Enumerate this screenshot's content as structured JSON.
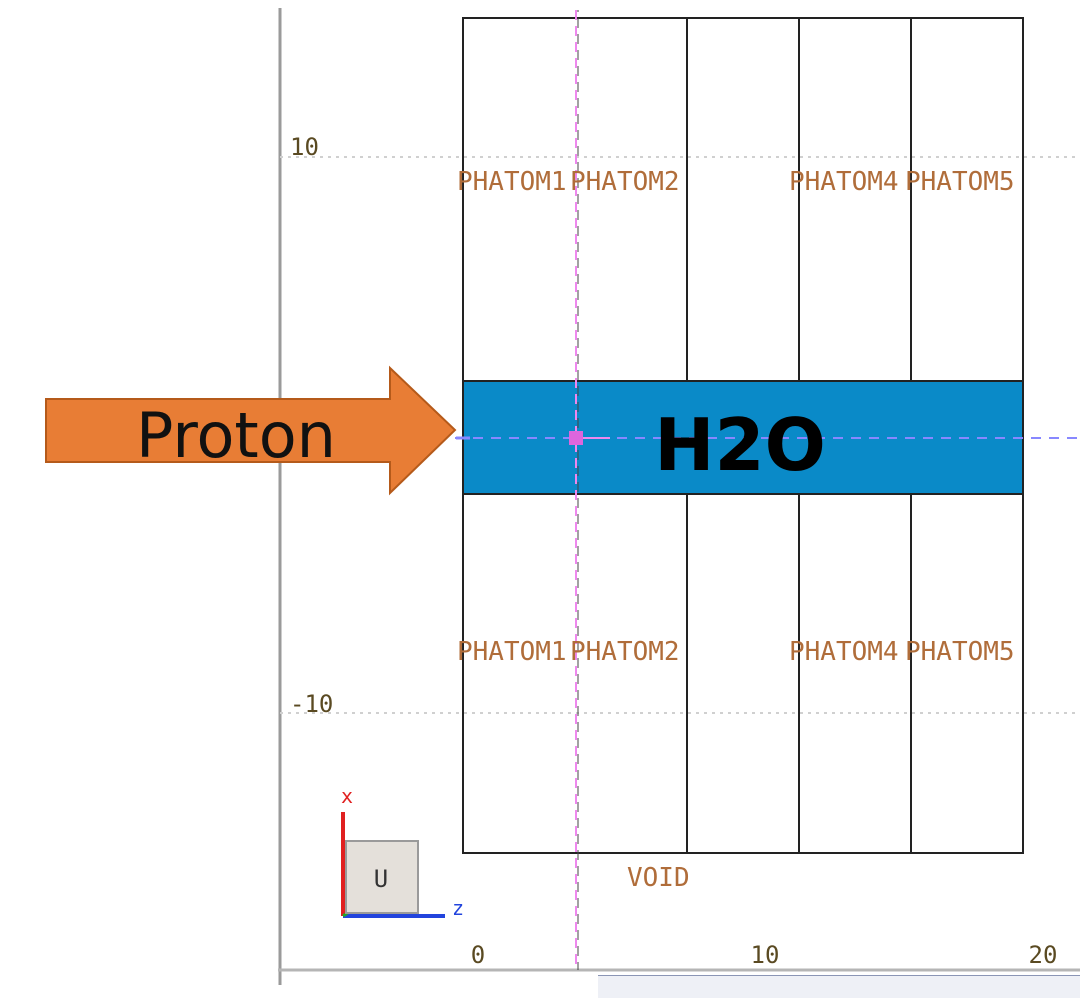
{
  "regions": {
    "upper": [
      "PHATOM1",
      "PHATOM2",
      "PHATOM4",
      "PHATOM5"
    ],
    "lower": [
      "PHATOM1",
      "PHATOM2",
      "PHATOM4",
      "PHATOM5"
    ],
    "outside": "VOID"
  },
  "band_label": "H2O",
  "arrow_label": "Proton",
  "axis_ticks": {
    "vertical": [
      "10",
      "-10"
    ],
    "horizontal": [
      "0",
      "10",
      "20"
    ]
  },
  "triad": {
    "up_axis": "x",
    "right_axis": "z",
    "view_button": "U"
  },
  "colors": {
    "band": "#0a8ac8",
    "arrow": "#e87d35",
    "region_label": "#b06d3a",
    "beam_axis": "#8888ff",
    "marker_line": "#ee88ee"
  }
}
